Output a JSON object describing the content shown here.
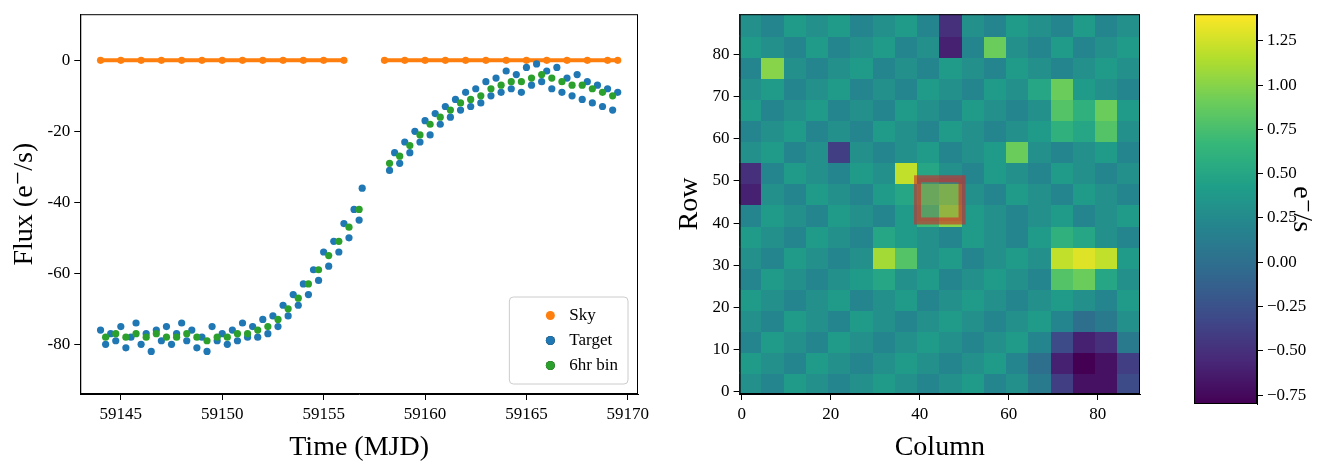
{
  "chart_data": [
    {
      "type": "scatter",
      "x_label": "Time (MJD)",
      "y_label": "Flux (e⁻/s)",
      "xlim": [
        59143,
        59170.5
      ],
      "xticks": [
        59145,
        59150,
        59155,
        59160,
        59165,
        59170
      ],
      "ylim": [
        -94,
        13
      ],
      "yticks": [
        -80,
        -60,
        -40,
        -20,
        0
      ],
      "grid": false,
      "legend": "lower right",
      "series": [
        {
          "name": "Sky",
          "color": "#ff7f0e",
          "marker": "o",
          "line_style": "solid",
          "x": [
            59144,
            59145,
            59146,
            59147,
            59148,
            59149,
            59150,
            59151,
            59152,
            59153,
            59154,
            59155,
            59156,
            59157,
            59158,
            59159,
            59160,
            59161,
            59162,
            59163,
            59164,
            59165,
            59166,
            59167,
            59168,
            59169,
            59169.5
          ],
          "values": [
            0,
            0,
            0,
            0,
            0,
            0,
            0,
            0,
            0,
            0,
            0,
            0,
            0,
            null,
            0,
            0,
            0,
            0,
            0,
            0,
            0,
            0,
            0,
            0,
            0,
            0,
            0
          ]
        },
        {
          "name": "Target",
          "color": "#1f77b4",
          "marker": "o",
          "x": [
            59144,
            59144.25,
            59144.5,
            59144.75,
            59145,
            59145.25,
            59145.5,
            59145.75,
            59146,
            59146.25,
            59146.5,
            59146.75,
            59147,
            59147.25,
            59147.5,
            59147.75,
            59148,
            59148.25,
            59148.5,
            59148.75,
            59149,
            59149.25,
            59149.5,
            59149.75,
            59150,
            59150.25,
            59150.5,
            59150.75,
            59151,
            59151.25,
            59151.5,
            59151.75,
            59152,
            59152.25,
            59152.5,
            59152.75,
            59153,
            59153.25,
            59153.5,
            59153.75,
            59154,
            59154.25,
            59154.5,
            59154.75,
            59155,
            59155.25,
            59155.5,
            59155.75,
            59156,
            59156.25,
            59156.5,
            59156.75,
            59156.9,
            59158.25,
            59158.5,
            59158.75,
            59159,
            59159.25,
            59159.5,
            59159.75,
            59160,
            59160.25,
            59160.5,
            59160.75,
            59161,
            59161.25,
            59161.5,
            59161.75,
            59162,
            59162.25,
            59162.5,
            59162.75,
            59163,
            59163.25,
            59163.5,
            59163.75,
            59164,
            59164.25,
            59164.5,
            59164.75,
            59165,
            59165.25,
            59165.5,
            59165.75,
            59166,
            59166.25,
            59166.5,
            59166.75,
            59167,
            59167.25,
            59167.5,
            59167.75,
            59168,
            59168.25,
            59168.5,
            59168.75,
            59169,
            59169.25,
            59169.5
          ],
          "values": [
            -76,
            -80,
            -77,
            -79,
            -75,
            -81,
            -78,
            -74,
            -80,
            -77,
            -82,
            -76,
            -79,
            -75,
            -80,
            -77,
            -74,
            -79,
            -76,
            -81,
            -78,
            -82,
            -75,
            -79,
            -77,
            -80,
            -76,
            -79,
            -74,
            -78,
            -75,
            -78,
            -73,
            -77,
            -72,
            -75,
            -69,
            -72,
            -66,
            -69,
            -63,
            -66,
            -59,
            -62,
            -54,
            -58,
            -51,
            -54,
            -46,
            -50,
            -42,
            -45,
            -36,
            -31,
            -26,
            -29,
            -23,
            -26,
            -20,
            -23,
            -17,
            -21,
            -15,
            -18,
            -13,
            -16,
            -11,
            -14,
            -9,
            -13,
            -8,
            -12,
            -6,
            -10,
            -5,
            -9,
            -3,
            -8,
            -4,
            -9,
            -2,
            -7,
            -1,
            -6,
            -3,
            -8,
            -2,
            -9,
            -5,
            -10,
            -4,
            -11,
            -6,
            -12,
            -7,
            -13,
            -8,
            -14,
            -9
          ]
        },
        {
          "name": "6hr bin",
          "color": "#2ca02c",
          "marker": "o",
          "x": [
            59144.25,
            59144.75,
            59145.25,
            59145.75,
            59146.25,
            59146.75,
            59147.25,
            59147.75,
            59148.25,
            59148.75,
            59149.25,
            59149.75,
            59150.25,
            59150.75,
            59151.25,
            59151.75,
            59152.25,
            59152.75,
            59153.25,
            59153.75,
            59154.25,
            59154.75,
            59155.25,
            59155.75,
            59156.25,
            59156.75,
            59158.25,
            59158.75,
            59159.25,
            59159.75,
            59160.25,
            59160.75,
            59161.25,
            59161.75,
            59162.25,
            59162.75,
            59163.25,
            59163.75,
            59164.25,
            59164.75,
            59165.25,
            59165.75,
            59166.25,
            59166.75,
            59167.25,
            59167.75,
            59168.25,
            59168.75,
            59169.25
          ],
          "values": [
            -78,
            -77,
            -78,
            -77,
            -78,
            -77,
            -78,
            -78,
            -77,
            -78,
            -79,
            -78,
            -78,
            -77,
            -77,
            -76,
            -75,
            -73,
            -70,
            -67,
            -63,
            -59,
            -55,
            -51,
            -47,
            -42,
            -29,
            -27,
            -24,
            -21,
            -18,
            -16,
            -14,
            -12,
            -11,
            -10,
            -8,
            -7,
            -6,
            -6,
            -5,
            -4,
            -5,
            -6,
            -7,
            -7,
            -8,
            -9,
            -10
          ]
        }
      ]
    },
    {
      "type": "heatmap",
      "x_label": "Column",
      "y_label": "Row",
      "xlim": [
        -0.5,
        89.5
      ],
      "xticks": [
        0,
        20,
        40,
        60,
        80
      ],
      "ylim": [
        -0.5,
        89.5
      ],
      "yticks": [
        0,
        10,
        20,
        30,
        40,
        50,
        60,
        70,
        80
      ],
      "grid": false,
      "cells": [
        [
          0.3,
          0.2,
          0.4,
          0.3,
          0.2,
          0.3,
          0.4,
          0.3,
          0.2,
          0.3,
          0.4,
          0.2,
          0.3,
          0.1,
          -0.4,
          -0.7,
          -0.7,
          -0.3
        ],
        [
          0.4,
          0.3,
          0.2,
          0.4,
          0.3,
          0.2,
          0.3,
          0.4,
          0.3,
          0.2,
          0.3,
          0.4,
          0.2,
          0.0,
          -0.6,
          -0.8,
          -0.7,
          -0.4
        ],
        [
          0.2,
          0.4,
          0.3,
          0.2,
          0.4,
          0.3,
          0.2,
          0.3,
          0.4,
          0.3,
          0.2,
          0.3,
          0.4,
          0.2,
          -0.3,
          -0.6,
          -0.5,
          0.1
        ],
        [
          0.3,
          0.2,
          0.4,
          0.3,
          0.2,
          0.4,
          0.3,
          0.2,
          0.3,
          0.4,
          0.3,
          0.2,
          0.3,
          0.4,
          0.2,
          0.0,
          0.1,
          0.3
        ],
        [
          0.4,
          0.3,
          0.2,
          0.3,
          0.4,
          0.2,
          0.3,
          0.4,
          0.2,
          0.3,
          0.4,
          0.3,
          0.2,
          0.3,
          0.4,
          0.3,
          0.2,
          0.4
        ],
        [
          0.2,
          0.4,
          0.3,
          0.2,
          0.3,
          0.4,
          0.5,
          0.3,
          0.4,
          0.2,
          0.3,
          0.4,
          0.3,
          0.2,
          0.8,
          0.9,
          0.5,
          0.3
        ],
        [
          0.3,
          0.2,
          0.4,
          0.3,
          0.2,
          0.3,
          1.1,
          0.8,
          0.3,
          0.4,
          0.2,
          0.3,
          0.4,
          0.3,
          1.2,
          1.3,
          1.2,
          0.4
        ],
        [
          0.4,
          0.3,
          0.2,
          0.4,
          0.3,
          0.2,
          0.5,
          0.4,
          0.3,
          0.2,
          0.4,
          0.3,
          0.2,
          0.4,
          0.6,
          0.5,
          0.3,
          0.2
        ],
        [
          0.2,
          0.4,
          0.3,
          0.2,
          0.4,
          0.3,
          0.2,
          0.4,
          0.7,
          1.0,
          0.4,
          0.3,
          0.2,
          0.3,
          0.4,
          0.2,
          0.3,
          0.4
        ],
        [
          -0.6,
          0.3,
          0.2,
          0.4,
          0.3,
          0.2,
          0.4,
          0.5,
          0.8,
          0.9,
          0.3,
          0.2,
          0.4,
          0.3,
          0.2,
          0.4,
          0.3,
          0.2
        ],
        [
          -0.5,
          0.2,
          0.4,
          0.3,
          0.2,
          0.4,
          0.3,
          1.2,
          0.5,
          0.3,
          0.2,
          0.4,
          0.3,
          0.2,
          0.4,
          0.3,
          0.2,
          0.3
        ],
        [
          0.3,
          0.4,
          0.2,
          0.3,
          -0.4,
          0.3,
          0.2,
          0.3,
          0.4,
          0.2,
          0.3,
          0.4,
          0.9,
          0.3,
          0.2,
          0.3,
          0.4,
          0.2
        ],
        [
          0.2,
          0.3,
          0.4,
          0.2,
          0.3,
          0.2,
          0.4,
          0.3,
          0.2,
          0.4,
          0.3,
          0.2,
          0.3,
          0.4,
          0.6,
          0.5,
          0.8,
          0.3
        ],
        [
          0.4,
          0.2,
          0.3,
          0.4,
          0.2,
          0.3,
          0.2,
          0.4,
          0.3,
          0.2,
          0.4,
          0.3,
          0.2,
          0.3,
          0.8,
          0.6,
          0.9,
          0.4
        ],
        [
          0.3,
          0.4,
          0.2,
          0.3,
          0.4,
          0.2,
          0.3,
          0.2,
          0.4,
          0.3,
          0.2,
          0.4,
          0.3,
          0.5,
          0.9,
          0.4,
          0.3,
          0.2
        ],
        [
          0.2,
          1.0,
          0.3,
          0.2,
          0.3,
          0.4,
          0.2,
          0.3,
          0.2,
          0.4,
          0.3,
          0.2,
          0.4,
          0.3,
          0.2,
          0.3,
          0.4,
          0.3
        ],
        [
          0.4,
          0.3,
          0.2,
          0.4,
          0.2,
          0.3,
          0.4,
          0.2,
          0.3,
          -0.6,
          0.2,
          0.9,
          0.3,
          0.2,
          0.4,
          0.2,
          0.3,
          0.4
        ],
        [
          0.3,
          0.2,
          0.4,
          0.3,
          0.4,
          0.2,
          0.3,
          0.4,
          0.2,
          -0.5,
          0.3,
          0.2,
          0.4,
          0.3,
          0.2,
          0.4,
          0.2,
          0.3
        ]
      ],
      "aperture": {
        "columns": [
          39.5,
          49.5
        ],
        "rows": [
          40.5,
          50.5
        ]
      },
      "colorbar": {
        "range": [
          -0.8,
          1.4
        ],
        "ticks": [
          {
            "value": -0.75,
            "label": "−0.75"
          },
          {
            "value": -0.5,
            "label": "−0.50"
          },
          {
            "value": -0.25,
            "label": "−0.25"
          },
          {
            "value": 0,
            "label": "0.00"
          },
          {
            "value": 0.25,
            "label": "0.25"
          },
          {
            "value": 0.5,
            "label": "0.50"
          },
          {
            "value": 0.75,
            "label": "0.75"
          },
          {
            "value": 1,
            "label": "1.00"
          },
          {
            "value": 1.25,
            "label": "1.25"
          }
        ],
        "label": "e⁻/s"
      }
    }
  ]
}
